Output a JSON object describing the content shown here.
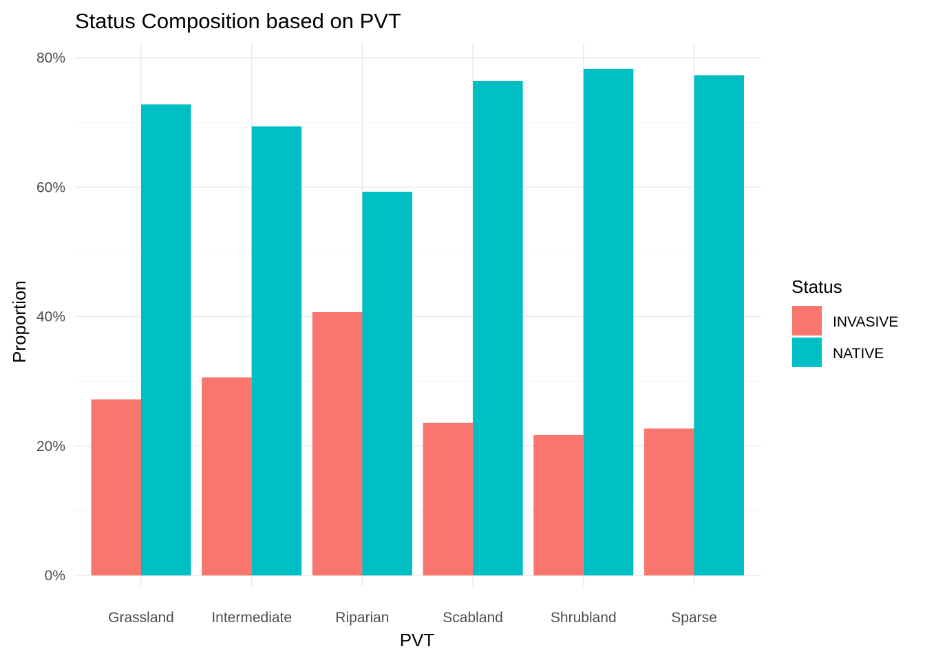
{
  "chart_data": {
    "type": "bar",
    "title": "Status Composition based on PVT",
    "xlabel": "PVT",
    "ylabel": "Proportion",
    "categories": [
      "Grassland",
      "Intermediate",
      "Riparian",
      "Scabland",
      "Shrubland",
      "Sparse"
    ],
    "series": [
      {
        "name": "INVASIVE",
        "color": "#F8766D",
        "values": [
          0.272,
          0.306,
          0.407,
          0.236,
          0.217,
          0.227
        ]
      },
      {
        "name": "NATIVE",
        "color": "#00BFC4",
        "values": [
          0.728,
          0.694,
          0.593,
          0.764,
          0.783,
          0.773
        ]
      }
    ],
    "ylim": [
      0,
      0.8
    ],
    "y_ticks": [
      0,
      0.2,
      0.4,
      0.6,
      0.8
    ],
    "y_tick_labels": [
      "0%",
      "20%",
      "40%",
      "60%",
      "80%"
    ],
    "grid": true,
    "legend": {
      "title": "Status",
      "position": "right"
    }
  }
}
